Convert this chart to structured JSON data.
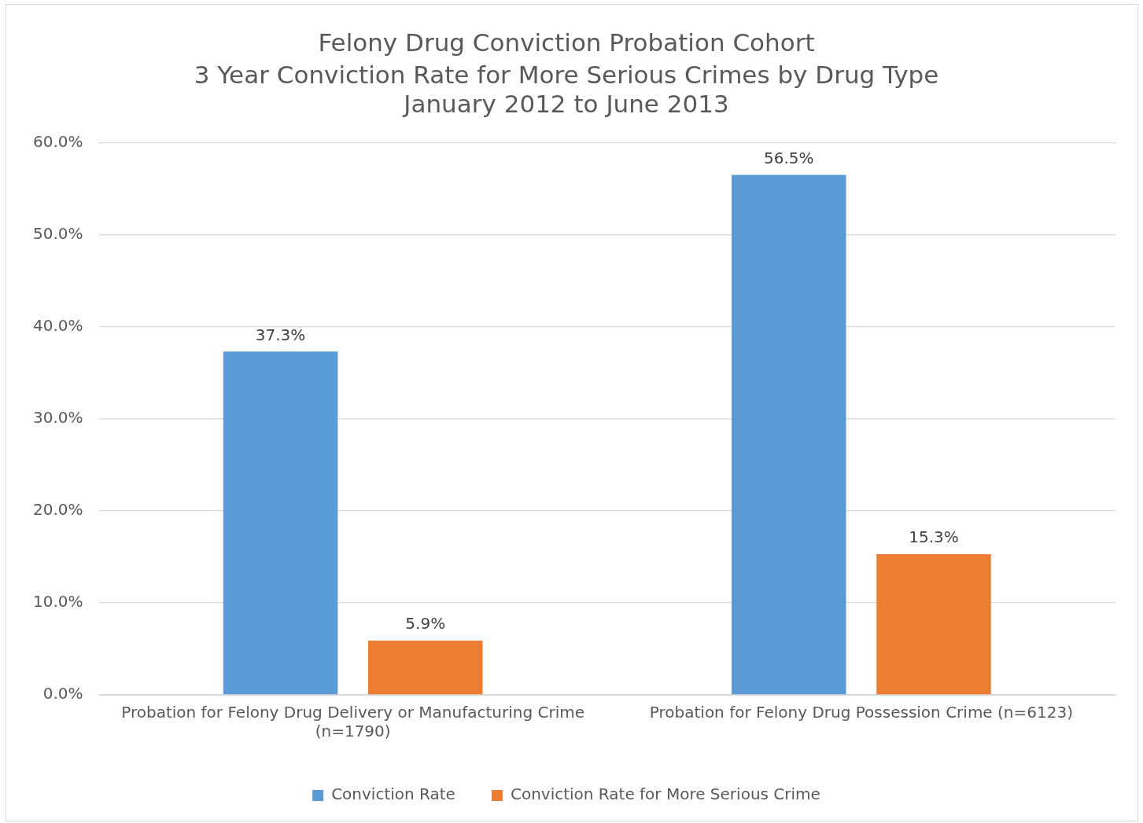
{
  "chart_data": {
    "type": "bar",
    "title": "Felony Drug Conviction Probation Cohort",
    "subtitle": "3 Year Conviction Rate for More Serious Crimes by Drug Type\nJanuary 2012 to June 2013",
    "categories": [
      "Probation for Felony Drug Delivery or Manufacturing Crime (n=1790)",
      "Probation for Felony Drug Possession Crime (n=6123)"
    ],
    "series": [
      {
        "name": "Conviction Rate",
        "color": "#5b9bd5",
        "values": [
          37.3,
          56.5
        ],
        "value_labels": [
          "37.3%",
          "56.5%"
        ]
      },
      {
        "name": "Conviction Rate for More Serious Crime",
        "color": "#ed7d31",
        "values": [
          5.9,
          15.3
        ],
        "value_labels": [
          "5.9%",
          "15.3%"
        ]
      }
    ],
    "ylim": [
      0,
      60
    ],
    "yticks": [
      {
        "value": 0,
        "label": "0.0%"
      },
      {
        "value": 10,
        "label": "10.0%"
      },
      {
        "value": 20,
        "label": "20.0%"
      },
      {
        "value": 30,
        "label": "30.0%"
      },
      {
        "value": 40,
        "label": "40.0%"
      },
      {
        "value": 50,
        "label": "50.0%"
      },
      {
        "value": 60,
        "label": "60.0%"
      }
    ],
    "grid": "y",
    "legend": "bottom"
  }
}
